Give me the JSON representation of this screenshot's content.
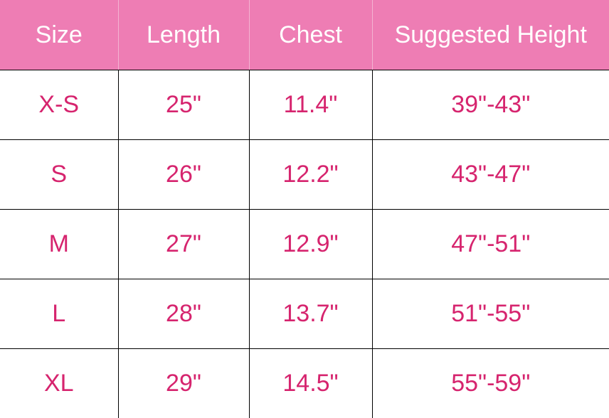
{
  "colors": {
    "header_bg": "#ee7db4",
    "header_text": "#ffffff",
    "cell_text": "#d6246e",
    "grid": "#000000"
  },
  "headers": [
    "Size",
    "Length",
    "Chest",
    "Suggested Height"
  ],
  "rows": [
    [
      "X-S",
      "25\"",
      "11.4\"",
      "39\"-43\""
    ],
    [
      "S",
      "26\"",
      "12.2\"",
      "43\"-47\""
    ],
    [
      "M",
      "27\"",
      "12.9\"",
      "47\"-51\""
    ],
    [
      "L",
      "28\"",
      "13.7\"",
      "51\"-55\""
    ],
    [
      "XL",
      "29\"",
      "14.5\"",
      "55\"-59\""
    ]
  ]
}
